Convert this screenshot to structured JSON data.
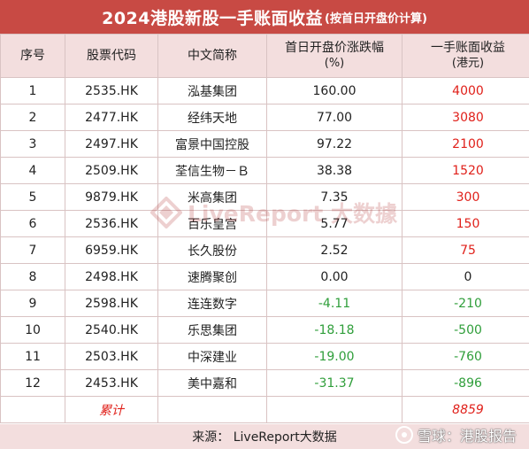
{
  "title": {
    "main": "2024港股新股一手账面收益",
    "sub": "(按首日开盘价计算)"
  },
  "headers": {
    "seq": "序号",
    "code": "股票代码",
    "name": "中文简称",
    "change_line1": "首日开盘价涨跌幅",
    "change_line2": "(%)",
    "gain_line1": "一手账面收益",
    "gain_line2": "(港元)"
  },
  "rows": [
    {
      "seq": "1",
      "code": "2535.HK",
      "name": "泓基集团",
      "change": "160.00",
      "gain": "4000"
    },
    {
      "seq": "2",
      "code": "2477.HK",
      "name": "经纬天地",
      "change": "77.00",
      "gain": "3080"
    },
    {
      "seq": "3",
      "code": "2497.HK",
      "name": "富景中国控股",
      "change": "97.22",
      "gain": "2100"
    },
    {
      "seq": "4",
      "code": "2509.HK",
      "name": "荃信生物－Ｂ",
      "change": "38.38",
      "gain": "1520"
    },
    {
      "seq": "5",
      "code": "9879.HK",
      "name": "米高集团",
      "change": "7.35",
      "gain": "300"
    },
    {
      "seq": "6",
      "code": "2536.HK",
      "name": "百乐皇宫",
      "change": "5.77",
      "gain": "150"
    },
    {
      "seq": "7",
      "code": "6959.HK",
      "name": "长久股份",
      "change": "2.52",
      "gain": "75"
    },
    {
      "seq": "8",
      "code": "2498.HK",
      "name": "速腾聚创",
      "change": "0.00",
      "gain": "0"
    },
    {
      "seq": "9",
      "code": "2598.HK",
      "name": "连连数字",
      "change": "-4.11",
      "gain": "-210"
    },
    {
      "seq": "10",
      "code": "2540.HK",
      "name": "乐思集团",
      "change": "-18.18",
      "gain": "-500"
    },
    {
      "seq": "11",
      "code": "2503.HK",
      "name": "中深建业",
      "change": "-19.00",
      "gain": "-760"
    },
    {
      "seq": "12",
      "code": "2453.HK",
      "name": "美中嘉和",
      "change": "-31.37",
      "gain": "-896"
    }
  ],
  "total": {
    "label": "累计",
    "value": "8859"
  },
  "footer": {
    "source": "来源： LiveReport大数据"
  },
  "watermark": {
    "text": "LiveReport 大数據"
  },
  "badge": {
    "text": "雪球：港股报告"
  },
  "colors": {
    "title_bg": "#c84a44",
    "header_bg": "#f3dede",
    "positive": "#e0201a",
    "negative": "#2f9e3a"
  }
}
